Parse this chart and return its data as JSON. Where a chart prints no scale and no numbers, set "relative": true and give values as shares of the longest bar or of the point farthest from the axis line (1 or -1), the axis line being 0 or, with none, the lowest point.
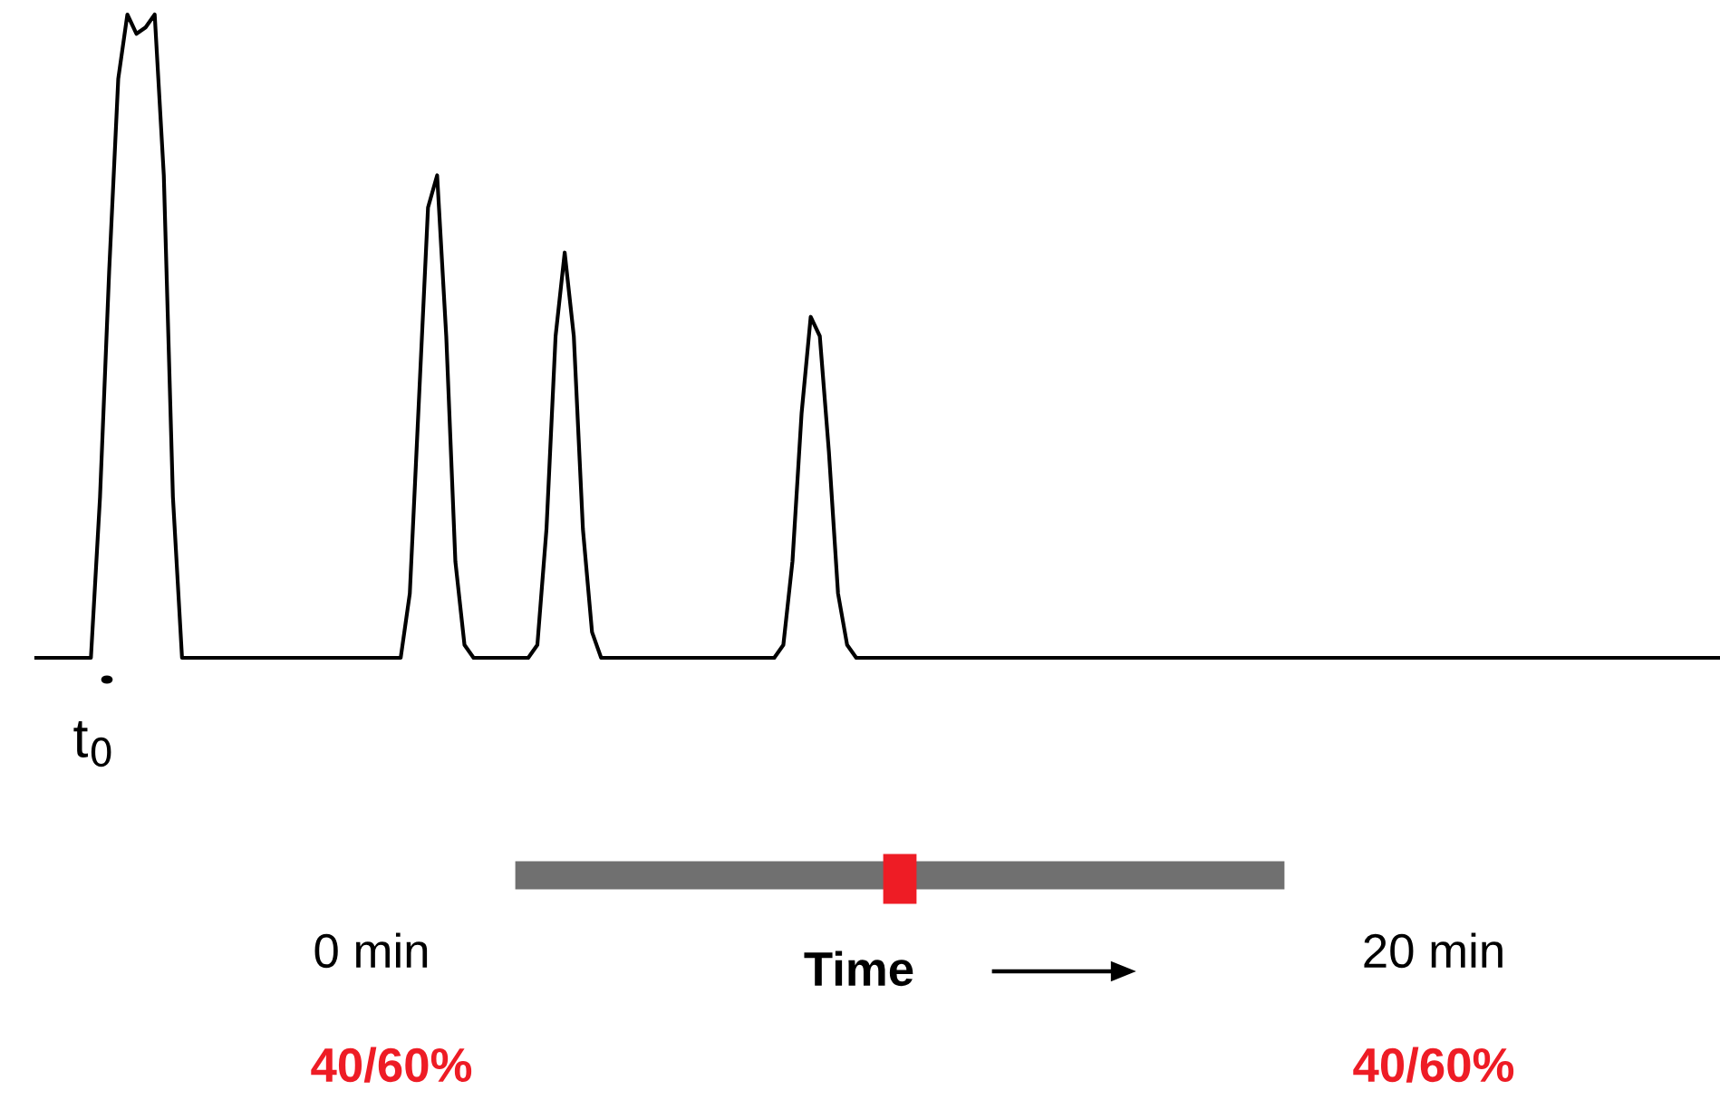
{
  "chart_data": {
    "type": "line",
    "relative": true,
    "categories": [
      null,
      null,
      null,
      null,
      null,
      null,
      null,
      null,
      null,
      null,
      null,
      null,
      null,
      null,
      null,
      null,
      null,
      null,
      null,
      null,
      null,
      null,
      null,
      null,
      null,
      null,
      null,
      null,
      null,
      null,
      null,
      null,
      null,
      null,
      null,
      null,
      null,
      null,
      null,
      null,
      null,
      null,
      null,
      null,
      null,
      null,
      null,
      null,
      null,
      null,
      null,
      null,
      null,
      null,
      null,
      null,
      null,
      null,
      null,
      null,
      null,
      null,
      null,
      null,
      null,
      null,
      null,
      null,
      null,
      null,
      null,
      null,
      null,
      null,
      null,
      null,
      null,
      null,
      null,
      null,
      null,
      null,
      null,
      null,
      null,
      null,
      null,
      null,
      null,
      null,
      null,
      null,
      null,
      null,
      null,
      null,
      null,
      null,
      null,
      null,
      null,
      null,
      null,
      null,
      null,
      null,
      null,
      null,
      null,
      null,
      null,
      null,
      null,
      null,
      null,
      null,
      null,
      null,
      null,
      null,
      null,
      null,
      null,
      null,
      null,
      null,
      null,
      null,
      null,
      null,
      null,
      null,
      null,
      null,
      null,
      null,
      null,
      null,
      null,
      null,
      null,
      null,
      null,
      null,
      null,
      null,
      null,
      null,
      null,
      null,
      null,
      null,
      null,
      null,
      null,
      null,
      null,
      null,
      null,
      null,
      null,
      null,
      null,
      null,
      null,
      null,
      null,
      null,
      null,
      null,
      null,
      null,
      null,
      null,
      null,
      null,
      null,
      null,
      null,
      null,
      null,
      null,
      null,
      null,
      null,
      null
    ],
    "series": [
      {
        "color": "#000000",
        "values": [
          0,
          0,
          0,
          0,
          0,
          0,
          0,
          0.25,
          0.6,
          0.9,
          1.0,
          0.97,
          0.98,
          1.0,
          0.75,
          0.25,
          0,
          0,
          0,
          0,
          0,
          0,
          0,
          0,
          0,
          0,
          0,
          0,
          0,
          0,
          0,
          0,
          0,
          0,
          0,
          0,
          0,
          0,
          0,
          0,
          0,
          0.1,
          0.4,
          0.7,
          0.75,
          0.5,
          0.15,
          0.02,
          0,
          0,
          0,
          0,
          0,
          0,
          0,
          0.02,
          0.2,
          0.5,
          0.63,
          0.5,
          0.2,
          0.04,
          0,
          0,
          0,
          0,
          0,
          0,
          0,
          0,
          0,
          0,
          0,
          0,
          0,
          0,
          0,
          0,
          0,
          0,
          0,
          0,
          0.02,
          0.15,
          0.38,
          0.53,
          0.5,
          0.32,
          0.1,
          0.02,
          0,
          0,
          0,
          0,
          0,
          0,
          0,
          0,
          0,
          0,
          0,
          0,
          0,
          0,
          0,
          0,
          0,
          0,
          0,
          0,
          0,
          0,
          0,
          0,
          0,
          0,
          0,
          0,
          0,
          0,
          0,
          0,
          0,
          0,
          0,
          0,
          0,
          0,
          0,
          0,
          0,
          0,
          0,
          0,
          0,
          0,
          0,
          0,
          0,
          0,
          0,
          0,
          0,
          0,
          0,
          0,
          0,
          0,
          0,
          0,
          0,
          0,
          0,
          0,
          0,
          0,
          0,
          0,
          0,
          0,
          0,
          0,
          0,
          0,
          0,
          0,
          0,
          0,
          0,
          0,
          0,
          0,
          0,
          0,
          0,
          0,
          0,
          0,
          0,
          0,
          0,
          0,
          0,
          0,
          0,
          0
        ]
      }
    ],
    "annotations": [
      "t$_{0}$",
      "0 min",
      "Time",
      "20 min",
      "40/60%",
      "40/60%"
    ]
  }
}
